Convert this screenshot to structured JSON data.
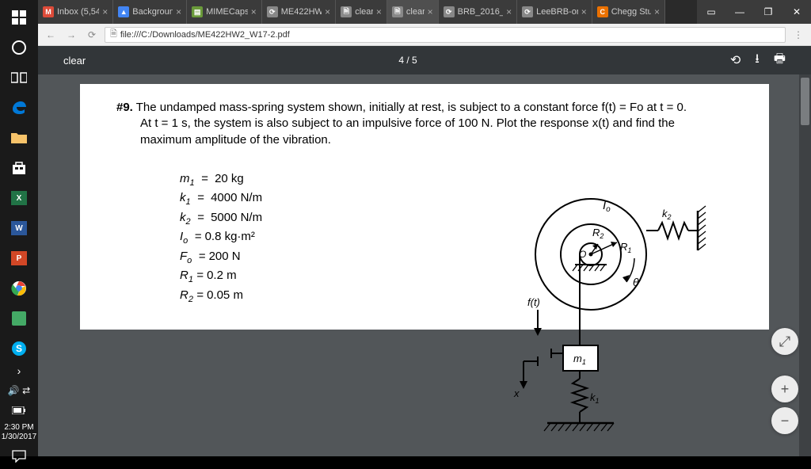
{
  "taskbar": {
    "clock_time": "2:30 PM",
    "clock_date": "1/30/2017",
    "items": [
      {
        "name": "start",
        "color": "#fff"
      },
      {
        "name": "cortana",
        "color": "#fff"
      },
      {
        "name": "taskview",
        "color": "#fff"
      },
      {
        "name": "edge",
        "color": "#0078d7"
      },
      {
        "name": "folder",
        "color": "#f7c36a"
      },
      {
        "name": "store",
        "color": "#fff"
      },
      {
        "name": "excel",
        "color": "#217346"
      },
      {
        "name": "word",
        "color": "#2b579a"
      },
      {
        "name": "powerpoint",
        "color": "#d24726"
      },
      {
        "name": "chrome",
        "color": "#fff"
      },
      {
        "name": "paint",
        "color": "#fff"
      },
      {
        "name": "skype",
        "color": "#00aff0"
      }
    ]
  },
  "tabs": [
    {
      "label": "Inbox (5,54",
      "fav_bg": "#dd4b39",
      "fav_txt": "M"
    },
    {
      "label": "Backgroun",
      "fav_bg": "#4285f4",
      "fav_txt": "▲"
    },
    {
      "label": "MIMECaps",
      "fav_bg": "#6a9a3a",
      "fav_txt": "▤"
    },
    {
      "label": "ME422HW",
      "fav_bg": "#888",
      "fav_txt": "⟳"
    },
    {
      "label": "clear",
      "fav_bg": "#888",
      "fav_txt": "🗎"
    },
    {
      "label": "clear",
      "fav_bg": "#888",
      "fav_txt": "🗎",
      "active": true
    },
    {
      "label": "BRB_2016_",
      "fav_bg": "#888",
      "fav_txt": "⟳"
    },
    {
      "label": "LeeBRB-or",
      "fav_bg": "#888",
      "fav_txt": "⟳"
    },
    {
      "label": "Chegg Stu",
      "fav_bg": "#eb7100",
      "fav_txt": "C"
    }
  ],
  "addressbar": {
    "url": "file:///C:/Downloads/ME422HW2_W17-2.pdf"
  },
  "pdf_toolbar": {
    "title": "clear",
    "page": "4 / 5"
  },
  "problem": {
    "number": "#9.",
    "text_line1": "The undamped mass-spring system shown, initially at rest, is subject to a constant force f(t) = Fo at t = 0.",
    "text_line2": "At t = 1 s, the system is also subject to an impulsive force of 100 N.   Plot the response x(t) and find the",
    "text_line3": "maximum amplitude of the vibration."
  },
  "params": {
    "m1": "20 kg",
    "k1": "4000  N/m",
    "k2": "5000  N/m",
    "Io": "0.8 kg·m²",
    "Fo": "200 N",
    "R1": "0.2 m",
    "R2": "0.05 m"
  },
  "figure_labels": {
    "Io": "Io",
    "k2": "k2",
    "R2": "R2",
    "R1": "R1",
    "O": "O",
    "theta": "θ",
    "ft": "f(t)",
    "m1": "m1",
    "x": "x",
    "k1": "k1"
  }
}
